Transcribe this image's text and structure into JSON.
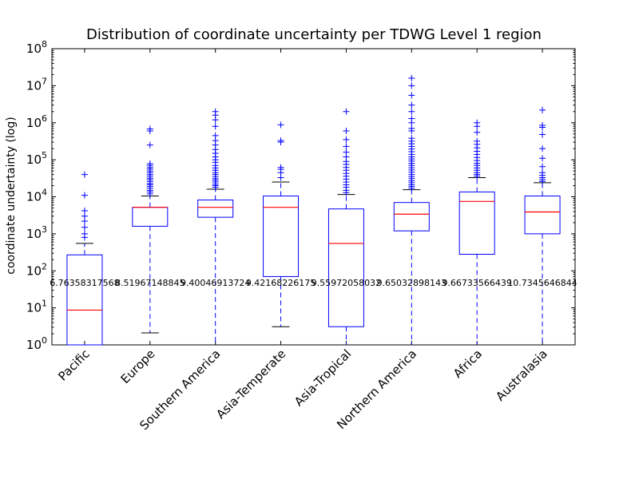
{
  "chart_data": {
    "type": "box",
    "title": "Distribution of coordinate uncertainty per TDWG Level 1 region",
    "xlabel": "",
    "ylabel": "coordinate undertainty (log)",
    "yscale": "log",
    "ylim": [
      1,
      100000000
    ],
    "yticks": [
      {
        "value": 1,
        "base": "10",
        "exp": "0"
      },
      {
        "value": 10,
        "base": "10",
        "exp": "1"
      },
      {
        "value": 100,
        "base": "10",
        "exp": "2"
      },
      {
        "value": 1000,
        "base": "10",
        "exp": "3"
      },
      {
        "value": 10000,
        "base": "10",
        "exp": "4"
      },
      {
        "value": 100000,
        "base": "10",
        "exp": "5"
      },
      {
        "value": 1000000,
        "base": "10",
        "exp": "6"
      },
      {
        "value": 10000000,
        "base": "10",
        "exp": "7"
      },
      {
        "value": 100000000,
        "base": "10",
        "exp": "8"
      }
    ],
    "annotation_y": 50,
    "colors": {
      "box": "#0000ff",
      "median": "#ff0000",
      "cap": "#000000",
      "flier": "#0000ff"
    },
    "categories": [
      "Pacific",
      "Europe",
      "Southern America",
      "Asia-Temperate",
      "Asia-Tropical",
      "Northern America",
      "Africa",
      "Australasia"
    ],
    "annotations": [
      "6.76358317568",
      "8.51967148845",
      "9.40046913724",
      "9.42168226175",
      "9.55972058032",
      "9.65032898143",
      "9.66733566439",
      "10.7345646844"
    ],
    "boxes": [
      {
        "whislo": 1,
        "q1": 1,
        "med": 8.7,
        "q3": 270,
        "whishi": 550,
        "fliers": [
          800,
          1000,
          1500,
          2200,
          3000,
          4200,
          11000,
          40000
        ]
      },
      {
        "whislo": 2.1,
        "q1": 1600,
        "med": 5200,
        "q3": 5200,
        "whishi": 10500,
        "fliers": [
          12000,
          13500,
          15000,
          17000,
          19000,
          21000,
          23000,
          26000,
          29000,
          32000,
          36000,
          40000,
          45000,
          50000,
          56000,
          62000,
          70000,
          78000,
          250000,
          600000,
          680000
        ]
      },
      {
        "whislo": 1,
        "q1": 2800,
        "med": 5200,
        "q3": 8200,
        "whishi": 16000,
        "fliers": [
          18000,
          20000,
          22000,
          25000,
          28000,
          31000,
          35000,
          40000,
          45000,
          52000,
          60000,
          70000,
          85000,
          100000,
          120000,
          150000,
          190000,
          250000,
          330000,
          450000,
          800000,
          1200000,
          1600000,
          2000000
        ]
      },
      {
        "whislo": 3.1,
        "q1": 70,
        "med": 5200,
        "q3": 10500,
        "whishi": 25000,
        "fliers": [
          33000,
          45000,
          55000,
          62000,
          300000,
          330000,
          880000
        ]
      },
      {
        "whislo": 1,
        "q1": 3.1,
        "med": 550,
        "q3": 4700,
        "whishi": 11500,
        "fliers": [
          13000,
          15000,
          18000,
          21000,
          25000,
          30000,
          36000,
          43000,
          52000,
          62000,
          75000,
          90000,
          120000,
          160000,
          230000,
          350000,
          600000,
          2000000
        ]
      },
      {
        "whislo": 1,
        "q1": 1200,
        "med": 3400,
        "q3": 7000,
        "whishi": 15500,
        "fliers": [
          17000,
          19000,
          21000,
          24000,
          27000,
          31000,
          35000,
          40000,
          46000,
          53000,
          61000,
          70000,
          80000,
          92000,
          105000,
          120000,
          140000,
          165000,
          195000,
          230000,
          270000,
          320000,
          380000,
          600000,
          700000,
          1000000,
          1300000,
          2000000,
          3000000,
          5500000,
          10000000,
          16000000
        ]
      },
      {
        "whislo": 1,
        "q1": 280,
        "med": 7500,
        "q3": 13500,
        "whishi": 33000,
        "fliers": [
          36000,
          40000,
          45000,
          52000,
          60000,
          70000,
          80000,
          95000,
          115000,
          140000,
          170000,
          210000,
          260000,
          320000,
          550000,
          800000,
          1000000
        ]
      },
      {
        "whislo": 1,
        "q1": 1000,
        "med": 3900,
        "q3": 10500,
        "whishi": 24000,
        "fliers": [
          26000,
          29000,
          33000,
          38000,
          45000,
          65000,
          110000,
          200000,
          480000,
          750000,
          850000,
          2200000
        ]
      }
    ]
  }
}
